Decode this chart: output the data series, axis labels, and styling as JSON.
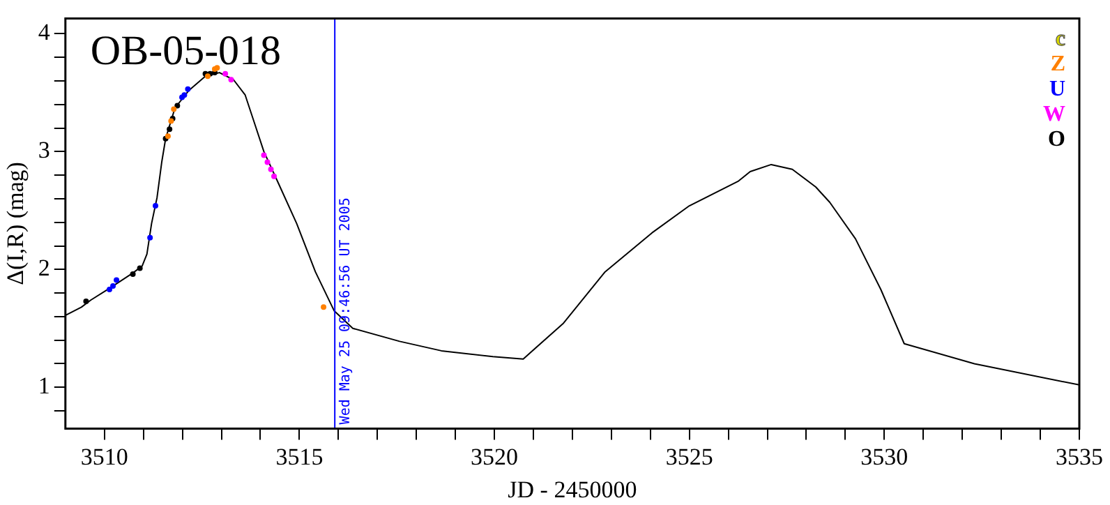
{
  "chart_data": {
    "type": "scatter",
    "title": "OB-05-018",
    "xlabel": "JD - 2450000",
    "ylabel": "Δ(I,R) (mag)",
    "xlim": [
      3509,
      3535
    ],
    "xticks": [
      3510,
      {
        "value": 3511,
        "label": null
      },
      {
        "value": 3512,
        "label": null
      },
      {
        "value": 3513,
        "label": null
      },
      {
        "value": 3514,
        "label": null
      },
      3515,
      {
        "value": 3516,
        "label": null
      },
      {
        "value": 3517,
        "label": null
      },
      {
        "value": 3518,
        "label": null
      },
      {
        "value": 3519,
        "label": null
      },
      3520,
      {
        "value": 3521,
        "label": null
      },
      {
        "value": 3522,
        "label": null
      },
      {
        "value": 3523,
        "label": null
      },
      {
        "value": 3524,
        "label": null
      },
      3525,
      {
        "value": 3526,
        "label": null
      },
      {
        "value": 3527,
        "label": null
      },
      {
        "value": 3528,
        "label": null
      },
      {
        "value": 3529,
        "label": null
      },
      3530,
      {
        "value": 3531,
        "label": null
      },
      {
        "value": 3532,
        "label": null
      },
      {
        "value": 3533,
        "label": null
      },
      {
        "value": 3534,
        "label": null
      },
      3535
    ],
    "ylim": [
      0.65,
      4.13
    ],
    "yticks": [
      {
        "value": 0.8,
        "label": null
      },
      1,
      {
        "value": 1.2,
        "label": null
      },
      {
        "value": 1.4,
        "label": null
      },
      {
        "value": 1.6,
        "label": null
      },
      {
        "value": 1.8,
        "label": null
      },
      2,
      {
        "value": 2.2,
        "label": null
      },
      {
        "value": 2.4,
        "label": null
      },
      {
        "value": 2.6,
        "label": null
      },
      {
        "value": 2.8,
        "label": null
      },
      3,
      {
        "value": 3.2,
        "label": null
      },
      {
        "value": 3.4,
        "label": null
      },
      {
        "value": 3.6,
        "label": null
      },
      {
        "value": 3.8,
        "label": null
      },
      4
    ],
    "grid": false,
    "legend": "top right",
    "marker": "circle",
    "ref_lines": [
      {
        "axis": "x",
        "value": 3515.908,
        "color": "#0000ff"
      }
    ],
    "annotations": [
      "Wed May 25 09:46:56 UT 2005"
    ],
    "series": [
      {
        "type": "line",
        "color": "#000000",
        "marker": "none",
        "line_style": "solid",
        "x": [
          3509.0,
          3509.41,
          3509.65,
          3510.13,
          3510.73,
          3510.97,
          3511.09,
          3511.21,
          3511.35,
          3511.47,
          3511.57,
          3511.81,
          3512.17,
          3512.59,
          3512.95,
          3513.31,
          3513.61,
          3513.85,
          3514.09,
          3514.45,
          3514.93,
          3515.41,
          3515.89,
          3516.37,
          3517.57,
          3518.64,
          3519.96,
          3520.74,
          3521.76,
          3522.84,
          3524.04,
          3525.0,
          3526.26,
          3526.56,
          3527.1,
          3527.64,
          3528.24,
          3528.6,
          3529.26,
          3529.91,
          3530.51,
          3532.31,
          3535.0
        ],
        "values": [
          1.61,
          1.68,
          1.74,
          1.84,
          1.97,
          2.03,
          2.13,
          2.39,
          2.61,
          2.91,
          3.11,
          3.37,
          3.52,
          3.64,
          3.67,
          3.61,
          3.48,
          3.24,
          3.0,
          2.74,
          2.39,
          1.98,
          1.65,
          1.5,
          1.39,
          1.31,
          1.26,
          1.24,
          1.54,
          1.98,
          2.31,
          2.54,
          2.75,
          2.83,
          2.89,
          2.85,
          2.7,
          2.57,
          2.26,
          1.83,
          1.37,
          1.2,
          1.02
        ]
      },
      {
        "name": "c",
        "color": "#d8d800"
      },
      {
        "name": "Z",
        "color": "#ff8000",
        "x": [
          3511.63,
          3511.71,
          3511.78,
          3512.65,
          3512.83,
          3512.89,
          3515.62
        ],
        "values": [
          3.13,
          3.26,
          3.36,
          3.64,
          3.7,
          3.71,
          1.68
        ]
      },
      {
        "name": "U",
        "color": "#0000ff",
        "x": [
          3510.13,
          3510.22,
          3510.31,
          3511.17,
          3511.31,
          3511.99,
          3512.05,
          3512.14
        ],
        "values": [
          1.83,
          1.86,
          1.91,
          2.27,
          2.54,
          3.46,
          3.48,
          3.53
        ]
      },
      {
        "name": "W",
        "color": "#ff00ff",
        "x": [
          3513.1,
          3513.25,
          3514.09,
          3514.18,
          3514.27,
          3514.35
        ],
        "values": [
          3.66,
          3.61,
          2.97,
          2.91,
          2.85,
          2.79
        ]
      },
      {
        "name": "O",
        "color": "#000000",
        "x": [
          3509.53,
          3510.73,
          3510.91,
          3511.57,
          3511.67,
          3511.75,
          3511.87,
          3512.59,
          3512.71,
          3512.83
        ],
        "values": [
          1.73,
          1.96,
          2.01,
          3.11,
          3.19,
          3.28,
          3.39,
          3.66,
          3.66,
          3.67
        ]
      }
    ]
  }
}
